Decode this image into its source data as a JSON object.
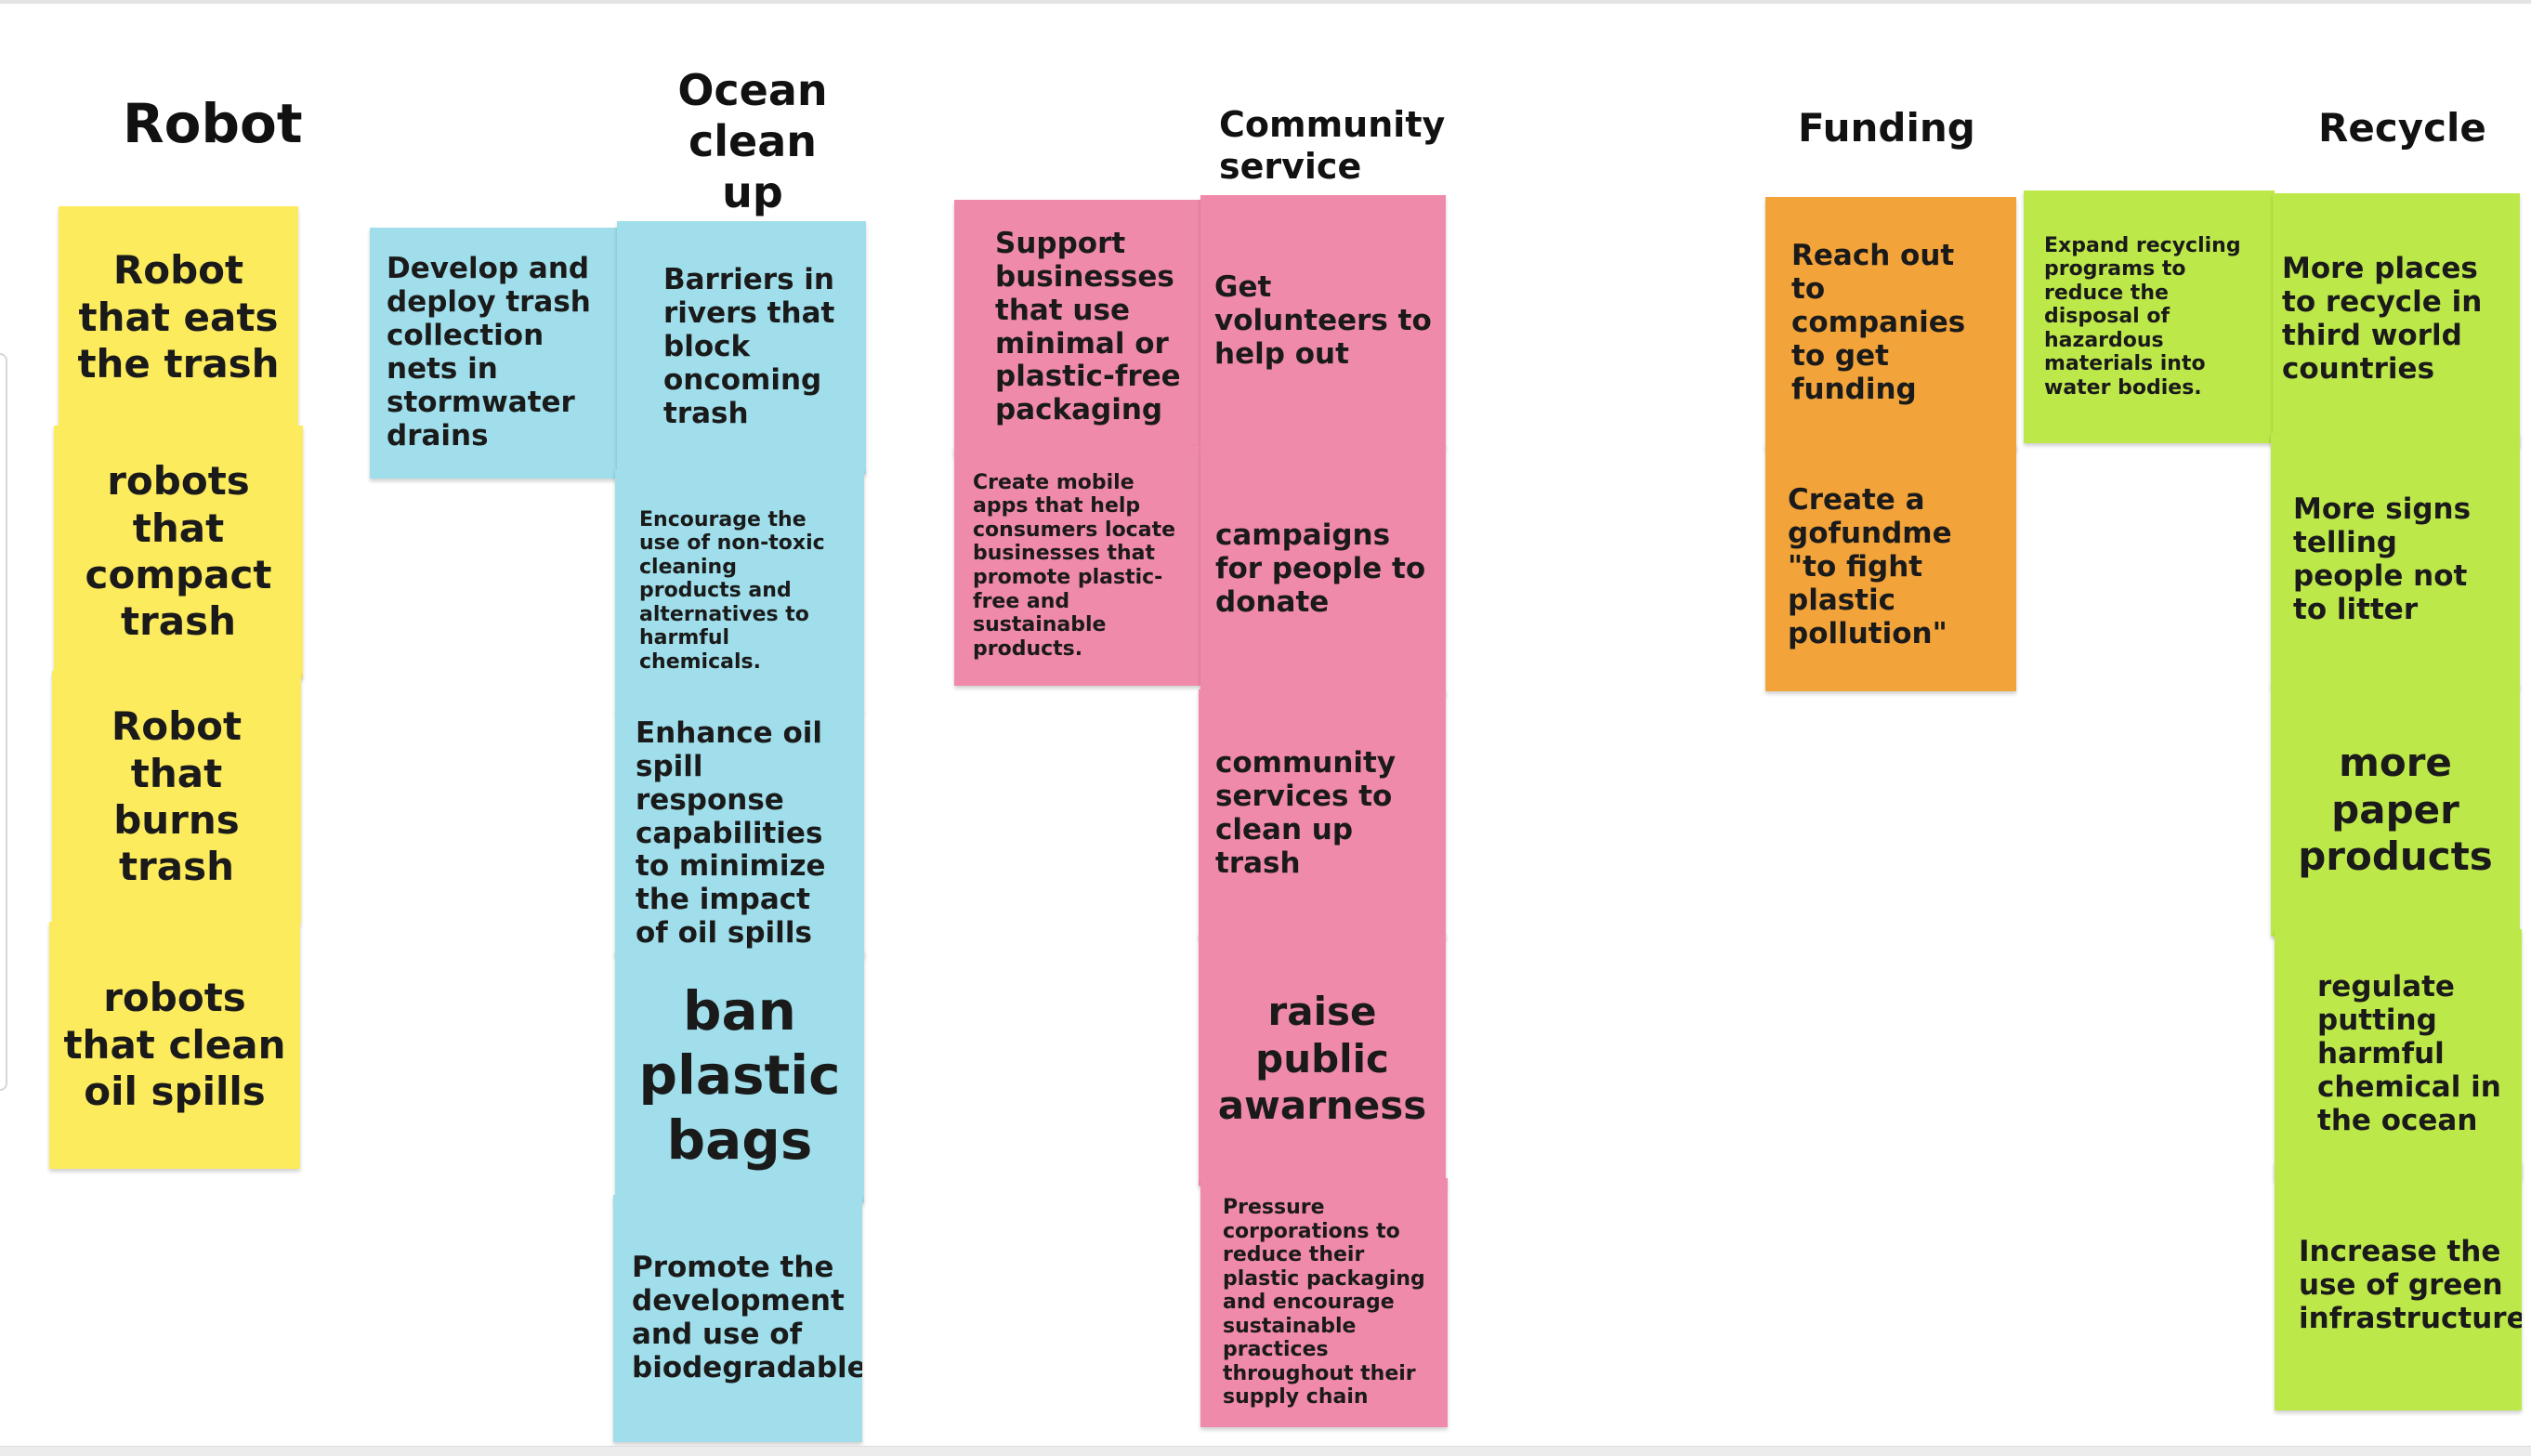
{
  "headings": {
    "robot": "Robot",
    "ocean_1": "Ocean",
    "ocean_2": "clean",
    "ocean_3": "up",
    "community_1": "Community",
    "community_2": "service",
    "funding": "Funding",
    "recycle": "Recycle"
  },
  "robot_notes": [
    "Robot that eats the trash",
    "robots that compact trash",
    "Robot that burns trash",
    "robots that clean oil spills"
  ],
  "ocean_notes": [
    "Develop and deploy trash collection nets in stormwater drains",
    "Barriers in rivers that block oncoming trash",
    "Encourage the use of non-toxic cleaning products and alternatives to harmful chemicals.",
    "Enhance oil spill response capabilities to minimize the impact of oil spills",
    "ban plastic bags",
    "Promote the development and use of biodegradable"
  ],
  "community_notes": [
    "Support businesses that use minimal or plastic-free packaging",
    "Get volunteers to help out",
    "Create mobile apps that help consumers locate businesses that promote plastic-free and sustainable products.",
    "campaigns for people to donate",
    "community services to clean up trash",
    "raise public awarness",
    "Pressure corporations to reduce their plastic packaging and encourage sustainable practices throughout their supply chain"
  ],
  "funding_notes": [
    "Reach out to companies to get funding",
    "Create a gofundme \"to fight plastic pollution\""
  ],
  "recycle_notes": [
    "Expand recycling programs to reduce the disposal of hazardous materials into water bodies.",
    "More places to recycle in third world countries",
    "More signs telling people not to litter",
    "more paper products",
    "regulate putting harmful chemical in the ocean",
    "Increase the use of green infrastructure"
  ],
  "colors": {
    "yellow": "#fdeb5e",
    "blue": "#9fdeea",
    "pink": "#f08aaa",
    "orange": "#f2a33a",
    "green": "#bde84a"
  }
}
